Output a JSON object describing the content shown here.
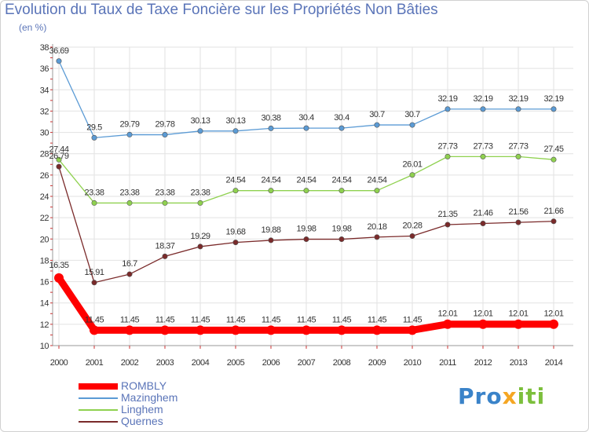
{
  "title": "Evolution du Taux de Taxe Foncière sur les Propriétés Non Bâties",
  "subtitle": "(en %)",
  "logo": {
    "part1": "Pro",
    "part2": "x",
    "part3": "iti"
  },
  "chart_data": {
    "type": "line",
    "title": "Evolution du Taux de Taxe Foncière sur les Propriétés Non Bâties",
    "ylabel": "(en %)",
    "xlabel": "",
    "categories": [
      "2000",
      "2001",
      "2002",
      "2003",
      "2004",
      "2005",
      "2006",
      "2007",
      "2008",
      "2009",
      "2010",
      "2011",
      "2012",
      "2013",
      "2014"
    ],
    "ylim": [
      10,
      38
    ],
    "yticks": [
      "10",
      "12",
      "14",
      "16",
      "18",
      "20",
      "22",
      "24",
      "26",
      "28",
      "30",
      "32",
      "34",
      "36",
      "38"
    ],
    "grid": true,
    "series": [
      {
        "name": "ROMBLY",
        "color": "#ff0000",
        "values": [
          16.35,
          11.45,
          11.45,
          11.45,
          11.45,
          11.45,
          11.45,
          11.45,
          11.45,
          11.45,
          11.45,
          12.01,
          12.01,
          12.01,
          12.01
        ],
        "labels": [
          "16.35",
          "11.45",
          "11.45",
          "11.45",
          "11.45",
          "11.45",
          "11.45",
          "11.45",
          "11.45",
          "11.45",
          "11.45",
          "12.01",
          "12.01",
          "12.01",
          "12.01"
        ]
      },
      {
        "name": "Mazinghem",
        "color": "#5b9bd5",
        "values": [
          36.69,
          29.5,
          29.79,
          29.78,
          30.13,
          30.13,
          30.38,
          30.4,
          30.4,
          30.7,
          30.7,
          32.19,
          32.19,
          32.19,
          32.19
        ],
        "labels": [
          "36.69",
          "29.5",
          "29.79",
          "29.78",
          "30.13",
          "30.13",
          "30.38",
          "30.4",
          "30.4",
          "30.7",
          "30.7",
          "32.19",
          "32.19",
          "32.19",
          "32.19"
        ]
      },
      {
        "name": "Linghem",
        "color": "#8fd14f",
        "values": [
          27.44,
          23.38,
          23.38,
          23.38,
          23.38,
          24.54,
          24.54,
          24.54,
          24.54,
          24.54,
          26.01,
          27.73,
          27.73,
          27.73,
          27.45
        ],
        "labels": [
          "27.44",
          "23.38",
          "23.38",
          "23.38",
          "23.38",
          "24.54",
          "24.54",
          "24.54",
          "24.54",
          "24.54",
          "26.01",
          "27.73",
          "27.73",
          "27.73",
          "27.45"
        ]
      },
      {
        "name": "Quernes",
        "color": "#7a2a2a",
        "values": [
          26.79,
          15.91,
          16.7,
          18.37,
          19.29,
          19.68,
          19.88,
          19.98,
          19.98,
          20.18,
          20.28,
          21.35,
          21.46,
          21.56,
          21.66
        ],
        "labels": [
          "26.79",
          "15.91",
          "16.7",
          "18.37",
          "19.29",
          "19.68",
          "19.88",
          "19.98",
          "19.98",
          "20.18",
          "20.28",
          "21.35",
          "21.46",
          "21.56",
          "21.66"
        ]
      }
    ]
  }
}
